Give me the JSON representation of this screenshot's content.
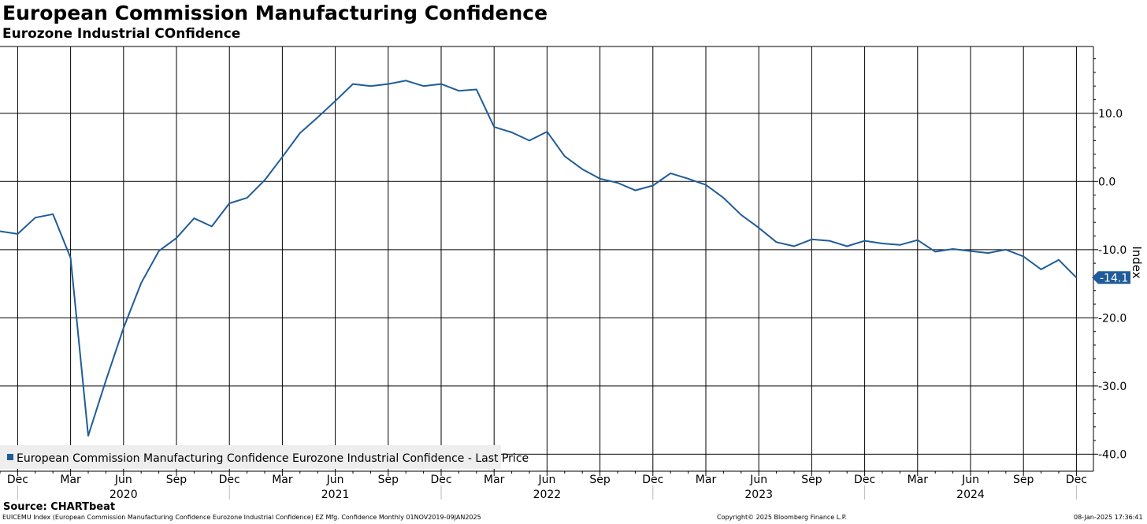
{
  "header": {
    "title": "European Commission Manufacturing Confidence",
    "subtitle": "Eurozone Industrial COnfidence"
  },
  "chart_data": {
    "type": "line",
    "title": "European Commission Manufacturing Confidence",
    "subtitle": "Eurozone Industrial COnfidence",
    "ylabel": "Index",
    "xlabel": "",
    "ylim": [
      -42.5,
      19.8
    ],
    "y_ticks": [
      10,
      0,
      -10,
      -20,
      -30,
      -40
    ],
    "y_tick_labels": [
      "10.0",
      "0.0",
      "-10.0",
      "-20.0",
      "-30.0",
      "-40.0"
    ],
    "x_month_ticks": [
      "Dec",
      "Mar",
      "Jun",
      "Sep",
      "Dec",
      "Mar",
      "Jun",
      "Sep",
      "Dec",
      "Mar",
      "Jun",
      "Sep",
      "Dec",
      "Mar",
      "Jun",
      "Sep",
      "Dec",
      "Mar",
      "Jun",
      "Sep",
      "Dec"
    ],
    "x_year_labels": [
      "2020",
      "2021",
      "2022",
      "2023",
      "2024"
    ],
    "grid": true,
    "legend_position": "bottom-left",
    "series": [
      {
        "name": "European Commission Manufacturing Confidence Eurozone Industrial Confidence - Last Price",
        "color": "#1f5c99",
        "x": [
          "2019-11",
          "2019-12",
          "2020-01",
          "2020-02",
          "2020-03",
          "2020-04",
          "2020-05",
          "2020-06",
          "2020-07",
          "2020-08",
          "2020-09",
          "2020-10",
          "2020-11",
          "2020-12",
          "2021-01",
          "2021-02",
          "2021-03",
          "2021-04",
          "2021-05",
          "2021-06",
          "2021-07",
          "2021-08",
          "2021-09",
          "2021-10",
          "2021-11",
          "2021-12",
          "2022-01",
          "2022-02",
          "2022-03",
          "2022-04",
          "2022-05",
          "2022-06",
          "2022-07",
          "2022-08",
          "2022-09",
          "2022-10",
          "2022-11",
          "2022-12",
          "2023-01",
          "2023-02",
          "2023-03",
          "2023-04",
          "2023-05",
          "2023-06",
          "2023-07",
          "2023-08",
          "2023-09",
          "2023-10",
          "2023-11",
          "2023-12",
          "2024-01",
          "2024-02",
          "2024-03",
          "2024-04",
          "2024-05",
          "2024-06",
          "2024-07",
          "2024-08",
          "2024-09",
          "2024-10",
          "2024-11",
          "2024-12"
        ],
        "values": [
          -7.3,
          -7.7,
          -5.3,
          -4.8,
          -11.2,
          -37.3,
          -29.2,
          -21.5,
          -14.9,
          -10.2,
          -8.3,
          -5.4,
          -6.6,
          -3.2,
          -2.4,
          0.2,
          3.6,
          7.1,
          9.4,
          11.8,
          14.3,
          14.0,
          14.3,
          14.8,
          14.0,
          14.3,
          13.3,
          13.5,
          8.0,
          7.2,
          6.0,
          7.3,
          3.7,
          1.8,
          0.4,
          -0.2,
          -1.3,
          -0.6,
          1.2,
          0.4,
          -0.5,
          -2.4,
          -4.9,
          -6.8,
          -8.9,
          -9.5,
          -8.5,
          -8.7,
          -9.5,
          -8.7,
          -9.1,
          -9.3,
          -8.6,
          -10.3,
          -9.9,
          -10.2,
          -10.5,
          -10.0,
          -11.0,
          -12.9,
          -11.5,
          -14.1
        ]
      }
    ],
    "last_value_label": "-14.1"
  },
  "footer": {
    "source": "Source: CHARTbeat",
    "ticker_info": "EUICEMU Index (European Commission Manufacturing Confidence Eurozone Industrial Confidence) EZ Mfg. Confidence  Monthly 01NOV2019-09JAN2025",
    "copyright": "Copyright© 2025 Bloomberg Finance L.P.",
    "timestamp": "08-Jan-2025 17:36:41"
  }
}
